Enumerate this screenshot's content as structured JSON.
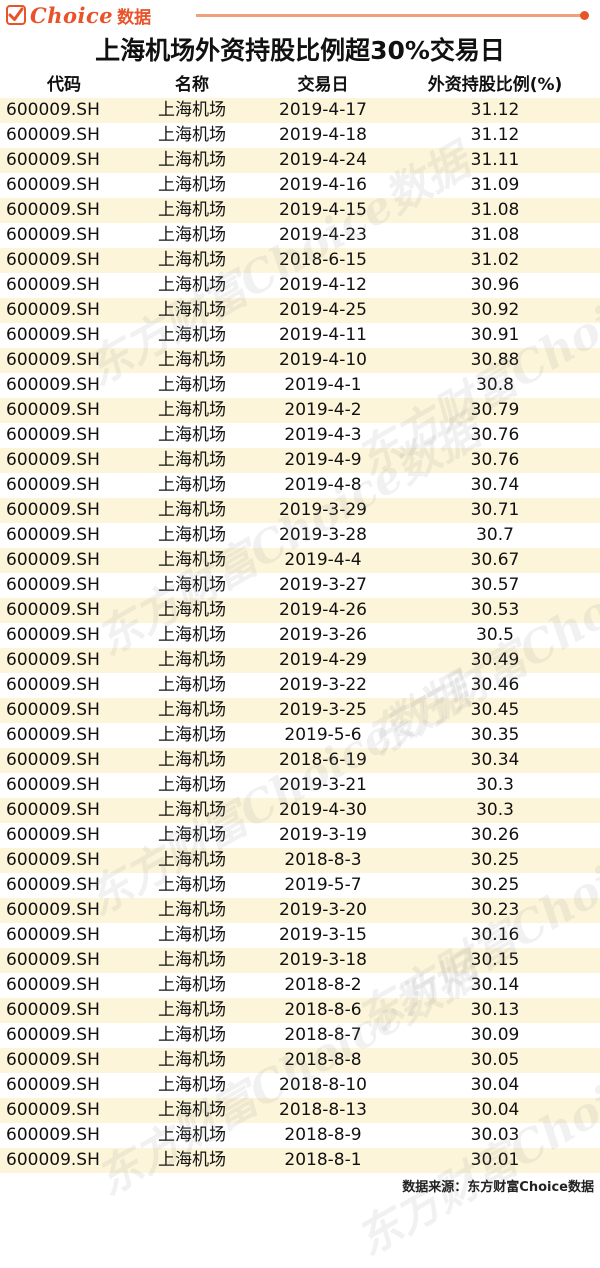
{
  "brand": {
    "logo_text": "Choice",
    "logo_cn": "数据",
    "accent_color": "#e8532a",
    "logo_icon": "checkmark-icon"
  },
  "title": "上海机场外资持股比例超30%交易日",
  "table": {
    "headers": [
      "代码",
      "名称",
      "交易日",
      "外资持股比例(%)"
    ],
    "rows": [
      [
        "600009.SH",
        "上海机场",
        "2019-4-17",
        "31.12"
      ],
      [
        "600009.SH",
        "上海机场",
        "2019-4-18",
        "31.12"
      ],
      [
        "600009.SH",
        "上海机场",
        "2019-4-24",
        "31.11"
      ],
      [
        "600009.SH",
        "上海机场",
        "2019-4-16",
        "31.09"
      ],
      [
        "600009.SH",
        "上海机场",
        "2019-4-15",
        "31.08"
      ],
      [
        "600009.SH",
        "上海机场",
        "2019-4-23",
        "31.08"
      ],
      [
        "600009.SH",
        "上海机场",
        "2018-6-15",
        "31.02"
      ],
      [
        "600009.SH",
        "上海机场",
        "2019-4-12",
        "30.96"
      ],
      [
        "600009.SH",
        "上海机场",
        "2019-4-25",
        "30.92"
      ],
      [
        "600009.SH",
        "上海机场",
        "2019-4-11",
        "30.91"
      ],
      [
        "600009.SH",
        "上海机场",
        "2019-4-10",
        "30.88"
      ],
      [
        "600009.SH",
        "上海机场",
        "2019-4-1",
        "30.8"
      ],
      [
        "600009.SH",
        "上海机场",
        "2019-4-2",
        "30.79"
      ],
      [
        "600009.SH",
        "上海机场",
        "2019-4-3",
        "30.76"
      ],
      [
        "600009.SH",
        "上海机场",
        "2019-4-9",
        "30.76"
      ],
      [
        "600009.SH",
        "上海机场",
        "2019-4-8",
        "30.74"
      ],
      [
        "600009.SH",
        "上海机场",
        "2019-3-29",
        "30.71"
      ],
      [
        "600009.SH",
        "上海机场",
        "2019-3-28",
        "30.7"
      ],
      [
        "600009.SH",
        "上海机场",
        "2019-4-4",
        "30.67"
      ],
      [
        "600009.SH",
        "上海机场",
        "2019-3-27",
        "30.57"
      ],
      [
        "600009.SH",
        "上海机场",
        "2019-4-26",
        "30.53"
      ],
      [
        "600009.SH",
        "上海机场",
        "2019-3-26",
        "30.5"
      ],
      [
        "600009.SH",
        "上海机场",
        "2019-4-29",
        "30.49"
      ],
      [
        "600009.SH",
        "上海机场",
        "2019-3-22",
        "30.46"
      ],
      [
        "600009.SH",
        "上海机场",
        "2019-3-25",
        "30.45"
      ],
      [
        "600009.SH",
        "上海机场",
        "2019-5-6",
        "30.35"
      ],
      [
        "600009.SH",
        "上海机场",
        "2018-6-19",
        "30.34"
      ],
      [
        "600009.SH",
        "上海机场",
        "2019-3-21",
        "30.3"
      ],
      [
        "600009.SH",
        "上海机场",
        "2019-4-30",
        "30.3"
      ],
      [
        "600009.SH",
        "上海机场",
        "2019-3-19",
        "30.26"
      ],
      [
        "600009.SH",
        "上海机场",
        "2018-8-3",
        "30.25"
      ],
      [
        "600009.SH",
        "上海机场",
        "2019-5-7",
        "30.25"
      ],
      [
        "600009.SH",
        "上海机场",
        "2019-3-20",
        "30.23"
      ],
      [
        "600009.SH",
        "上海机场",
        "2019-3-15",
        "30.16"
      ],
      [
        "600009.SH",
        "上海机场",
        "2019-3-18",
        "30.15"
      ],
      [
        "600009.SH",
        "上海机场",
        "2018-8-2",
        "30.14"
      ],
      [
        "600009.SH",
        "上海机场",
        "2018-8-6",
        "30.13"
      ],
      [
        "600009.SH",
        "上海机场",
        "2018-8-7",
        "30.09"
      ],
      [
        "600009.SH",
        "上海机场",
        "2018-8-8",
        "30.05"
      ],
      [
        "600009.SH",
        "上海机场",
        "2018-8-10",
        "30.04"
      ],
      [
        "600009.SH",
        "上海机场",
        "2018-8-13",
        "30.04"
      ],
      [
        "600009.SH",
        "上海机场",
        "2018-8-9",
        "30.03"
      ],
      [
        "600009.SH",
        "上海机场",
        "2018-8-1",
        "30.01"
      ]
    ],
    "stripe_color": "#fdf5da"
  },
  "watermark_text": "东方财富Choice数据",
  "footer": "数据来源：东方财富Choice数据"
}
